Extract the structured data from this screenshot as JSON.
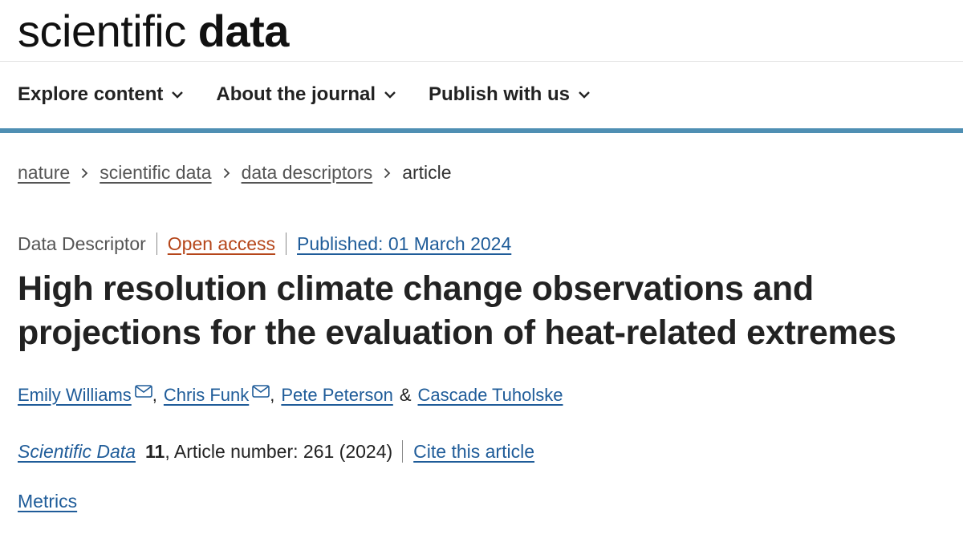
{
  "header": {
    "logo_light": "scientific",
    "logo_bold": "data"
  },
  "nav": [
    "Explore content",
    "About the journal",
    "Publish with us"
  ],
  "breadcrumbs": [
    "nature",
    "scientific data",
    "data descriptors",
    "article"
  ],
  "meta": {
    "type": "Data Descriptor",
    "access": "Open access",
    "published": "Published: 01 March 2024"
  },
  "title": "High resolution climate change observations and projections for the evaluation of heat-related extremes",
  "authors": [
    "Emily Williams",
    "Chris Funk",
    "Pete Peterson",
    "Cascade Tuholske"
  ],
  "author_separators": [
    ",",
    ",",
    "&"
  ],
  "citation": {
    "journal": "Scientific Data",
    "volume": "11",
    "article": ", Article number: 261 (2024)",
    "cite": "Cite this article"
  },
  "metrics": "Metrics"
}
